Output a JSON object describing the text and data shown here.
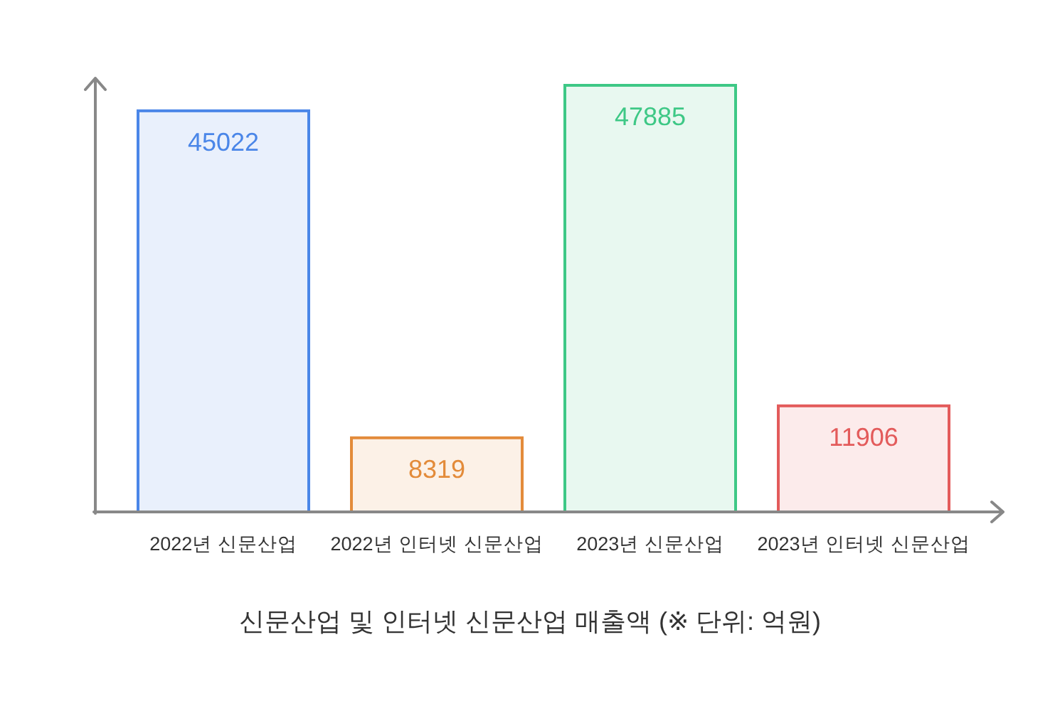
{
  "chart_data": {
    "type": "bar",
    "title": "신문산업 및 인터넷 신문산업 매출액 (※ 단위: 억원)",
    "categories": [
      "2022년 신문산업",
      "2022년 인터넷 신문산업",
      "2023년 신문산업",
      "2023년 인터넷 신문산업"
    ],
    "values": [
      45022,
      8319,
      47885,
      11906
    ],
    "colors": [
      "#4a86e8",
      "#e38b3a",
      "#3ec886",
      "#e35b5b"
    ],
    "data_labels": true,
    "tick_labels": "x"
  }
}
